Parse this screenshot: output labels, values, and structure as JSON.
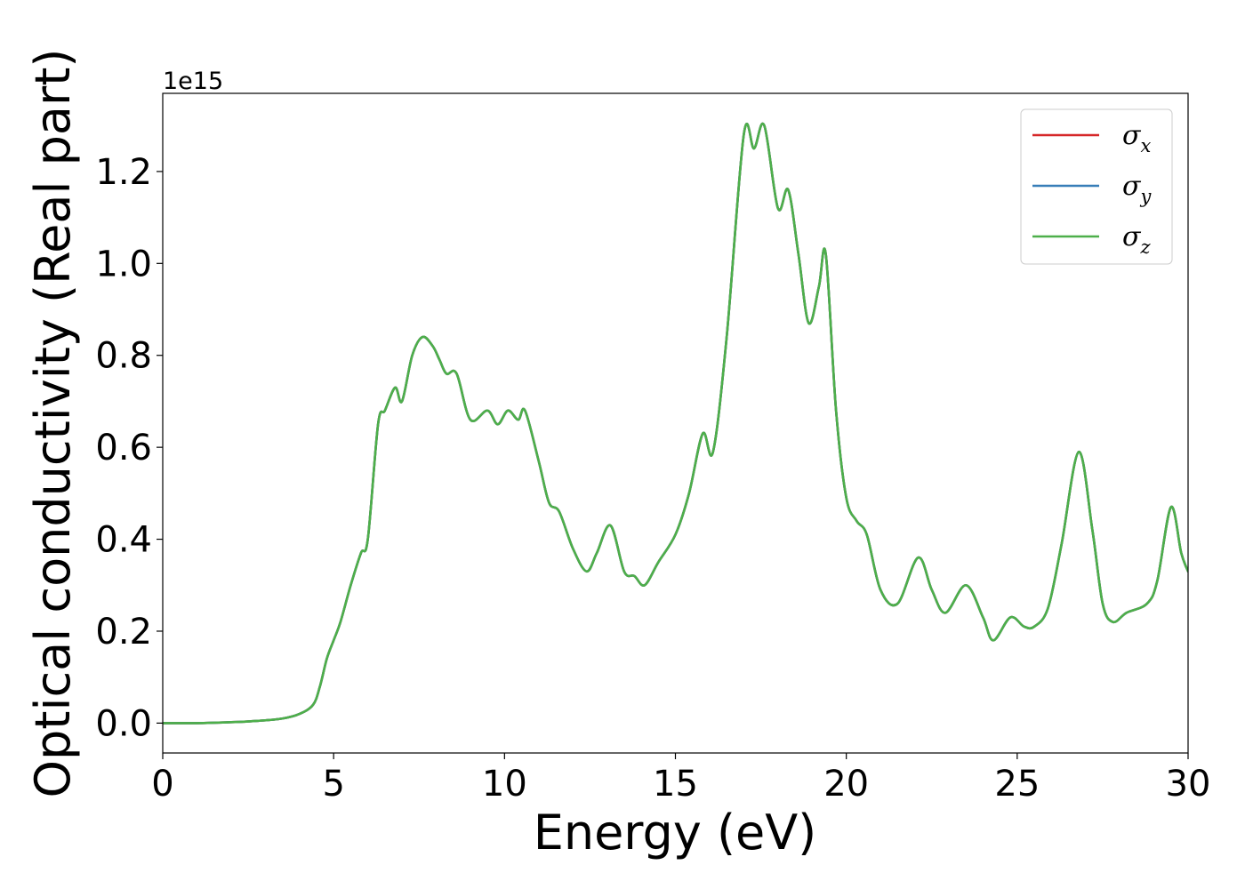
{
  "chart_data": {
    "type": "line",
    "xlabel": "Energy (eV)",
    "ylabel": "Optical conductivity (Real part)",
    "y_offset_text": "1e15",
    "xlim": [
      0,
      30
    ],
    "ylim": [
      -0.065,
      1.37
    ],
    "x_ticks": [
      0,
      5,
      10,
      15,
      20,
      25,
      30
    ],
    "x_tick_labels": [
      "0",
      "5",
      "10",
      "15",
      "20",
      "25",
      "30"
    ],
    "y_ticks": [
      0.0,
      0.2,
      0.4,
      0.6,
      0.8,
      1.0,
      1.2
    ],
    "y_tick_labels": [
      "0.0",
      "0.2",
      "0.4",
      "0.6",
      "0.8",
      "1.0",
      "1.2"
    ],
    "grid": false,
    "legend_position": "top-right",
    "series": [
      {
        "name": "σx",
        "symbol": "σ",
        "subscript": "x",
        "color": "#d62728",
        "shared_curve": true
      },
      {
        "name": "σy",
        "symbol": "σ",
        "subscript": "y",
        "color": "#377eb8",
        "shared_curve": true
      },
      {
        "name": "σz",
        "symbol": "σ",
        "subscript": "z",
        "color": "#4daf4a",
        "shared_curve": true
      }
    ],
    "shared_values": {
      "x": [
        0,
        1,
        2,
        2.8,
        3.5,
        4.0,
        4.4,
        4.6,
        4.8,
        5.0,
        5.2,
        5.5,
        5.8,
        6.0,
        6.3,
        6.5,
        6.8,
        7.0,
        7.3,
        7.6,
        7.9,
        8.1,
        8.3,
        8.6,
        9.0,
        9.5,
        9.8,
        10.1,
        10.4,
        10.6,
        11.0,
        11.3,
        11.6,
        12.0,
        12.4,
        12.7,
        13.1,
        13.5,
        13.8,
        14.1,
        14.5,
        15.0,
        15.4,
        15.8,
        16.1,
        16.5,
        17.0,
        17.3,
        17.6,
        18.0,
        18.3,
        18.6,
        18.9,
        19.2,
        19.4,
        19.7,
        20.0,
        20.3,
        20.6,
        21.0,
        21.5,
        22.1,
        22.5,
        22.9,
        23.5,
        24.0,
        24.3,
        24.8,
        25.2,
        25.5,
        25.9,
        26.3,
        26.8,
        27.2,
        27.5,
        27.8,
        28.2,
        28.8,
        29.1,
        29.5,
        29.8,
        30.0
      ],
      "y": [
        0.0,
        0.0,
        0.002,
        0.005,
        0.01,
        0.02,
        0.04,
        0.08,
        0.14,
        0.18,
        0.22,
        0.3,
        0.37,
        0.4,
        0.65,
        0.68,
        0.73,
        0.7,
        0.8,
        0.84,
        0.82,
        0.79,
        0.76,
        0.76,
        0.66,
        0.68,
        0.65,
        0.68,
        0.66,
        0.68,
        0.57,
        0.48,
        0.46,
        0.38,
        0.33,
        0.37,
        0.43,
        0.33,
        0.32,
        0.3,
        0.35,
        0.41,
        0.5,
        0.63,
        0.59,
        0.84,
        1.28,
        1.25,
        1.3,
        1.12,
        1.16,
        1.02,
        0.87,
        0.95,
        1.02,
        0.68,
        0.49,
        0.44,
        0.41,
        0.29,
        0.26,
        0.36,
        0.29,
        0.24,
        0.3,
        0.23,
        0.18,
        0.23,
        0.21,
        0.21,
        0.25,
        0.39,
        0.59,
        0.42,
        0.26,
        0.22,
        0.24,
        0.26,
        0.31,
        0.47,
        0.37,
        0.33
      ]
    }
  }
}
